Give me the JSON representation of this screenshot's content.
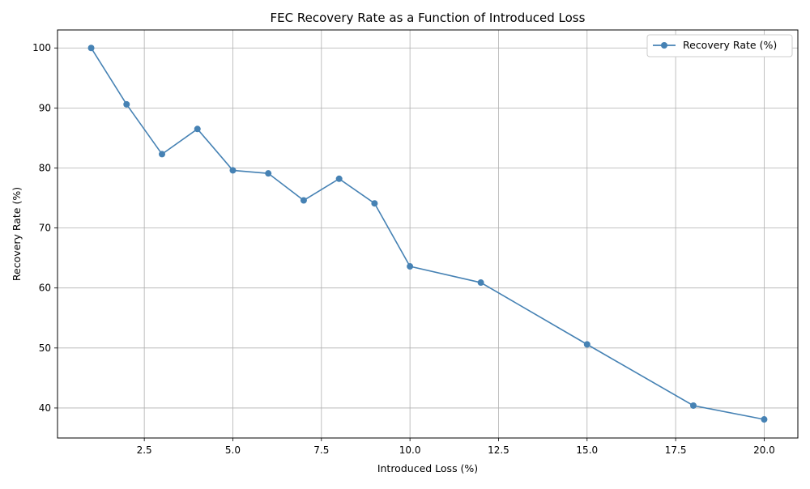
{
  "chart_data": {
    "type": "line",
    "title": "FEC Recovery Rate as a Function of Introduced Loss",
    "xlabel": "Introduced Loss (%)",
    "ylabel": "Recovery Rate (%)",
    "xlim": [
      0.05,
      20.95
    ],
    "ylim": [
      35.0,
      103.0
    ],
    "xticks": [
      2.5,
      5.0,
      7.5,
      10.0,
      12.5,
      15.0,
      17.5,
      20.0
    ],
    "yticks": [
      40,
      50,
      60,
      70,
      80,
      90,
      100
    ],
    "xtick_labels": [
      "2.5",
      "5.0",
      "7.5",
      "10.0",
      "12.5",
      "15.0",
      "17.5",
      "20.0"
    ],
    "ytick_labels": [
      "40",
      "50",
      "60",
      "70",
      "80",
      "90",
      "100"
    ],
    "grid": true,
    "legend_position": "top-right",
    "series": [
      {
        "name": "Recovery Rate (%)",
        "color": "#4682b4",
        "marker": "circle",
        "x": [
          1,
          2,
          3,
          4,
          5,
          6,
          7,
          8,
          9,
          10,
          12,
          15,
          18,
          20
        ],
        "y": [
          100.0,
          90.6,
          82.3,
          86.5,
          79.6,
          79.1,
          74.6,
          78.2,
          74.1,
          63.6,
          60.9,
          50.6,
          40.4,
          38.1
        ]
      }
    ]
  }
}
